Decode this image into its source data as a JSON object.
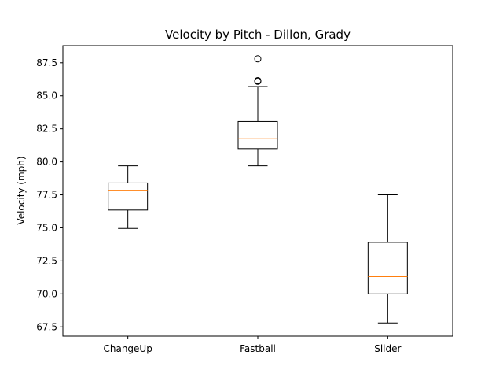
{
  "chart_data": {
    "type": "box",
    "title": "Velocity by Pitch - Dillon, Grady",
    "xlabel": "",
    "ylabel": "Velocity (mph)",
    "ylim": [
      66.8,
      88.8
    ],
    "yticks": [
      "67.5",
      "70.0",
      "72.5",
      "75.0",
      "77.5",
      "80.0",
      "82.5",
      "85.0",
      "87.5"
    ],
    "categories": [
      "ChangeUp",
      "Fastball",
      "Slider"
    ],
    "boxes": [
      {
        "category": "ChangeUp",
        "whisker_low": 74.95,
        "q1": 76.35,
        "median": 77.85,
        "q3": 78.4,
        "whisker_high": 79.7,
        "outliers": []
      },
      {
        "category": "Fastball",
        "whisker_low": 79.7,
        "q1": 81.0,
        "median": 81.75,
        "q3": 83.05,
        "whisker_high": 85.7,
        "outliers": [
          86.1,
          86.15,
          87.8
        ]
      },
      {
        "category": "Slider",
        "whisker_low": 67.8,
        "q1": 70.0,
        "median": 71.3,
        "q3": 73.9,
        "whisker_high": 77.5,
        "outliers": []
      }
    ],
    "grid": false,
    "colors": {
      "box": "#000000",
      "median": "#ff7f0e",
      "frame": "#000000"
    }
  }
}
